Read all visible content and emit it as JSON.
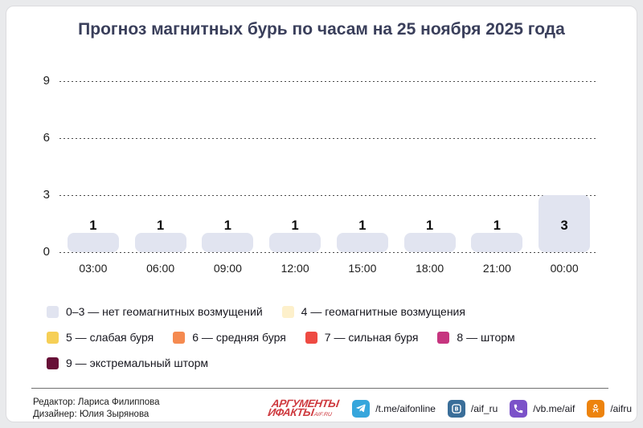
{
  "title": "Прогноз магнитных бурь по часам на 25 ноября 2025 года",
  "chart_data": {
    "type": "bar",
    "categories": [
      "03:00",
      "06:00",
      "09:00",
      "12:00",
      "15:00",
      "18:00",
      "21:00",
      "00:00"
    ],
    "values": [
      1,
      1,
      1,
      1,
      1,
      1,
      1,
      3
    ],
    "title": "Прогноз магнитных бурь по часам на 25 ноября 2025 года",
    "xlabel": "",
    "ylabel": "",
    "ylim": [
      0,
      9
    ],
    "yticks": [
      0,
      3,
      6,
      9
    ],
    "grid": "dotted horizontal",
    "bar_color": "#e1e4f0",
    "legend_position": "below"
  },
  "legend": {
    "items": [
      {
        "row": 1,
        "color": "#e1e4f0",
        "label": "0–3 — нет геомагнитных возмущений"
      },
      {
        "row": 1,
        "color": "#fdf0cb",
        "label": "4 — геомагнитные возмущения"
      },
      {
        "row": 2,
        "color": "#f6cf56",
        "label": "5 — слабая буря"
      },
      {
        "row": 2,
        "color": "#f58a50",
        "label": "6 — средняя буря"
      },
      {
        "row": 2,
        "color": "#ee4a42",
        "label": "7 — сильная буря"
      },
      {
        "row": 2,
        "color": "#c6357f",
        "label": "8 — шторм"
      },
      {
        "row": 3,
        "color": "#670f37",
        "label": "9 — экстремальный шторм"
      }
    ]
  },
  "footer": {
    "credits": [
      "Редактор: Лариса Филиппова",
      "Дизайнер: Юлия Зырянова"
    ],
    "logo": {
      "line1": "АРГУМЕНТЫ",
      "line2": "ИФАКТЫ",
      "suffix": "AIF.RU",
      "color": "#ce3a3f"
    },
    "socials": [
      {
        "icon": "telegram-icon",
        "color": "#36a6dc",
        "handle": "/t.me/aifonline"
      },
      {
        "icon": "vk-icon",
        "color": "#3a6e99",
        "handle": "/aif_ru"
      },
      {
        "icon": "viber-icon",
        "color": "#7b52c9",
        "handle": "/vb.me/aif"
      },
      {
        "icon": "ok-icon",
        "color": "#ed830d",
        "handle": "/aifru"
      }
    ]
  }
}
